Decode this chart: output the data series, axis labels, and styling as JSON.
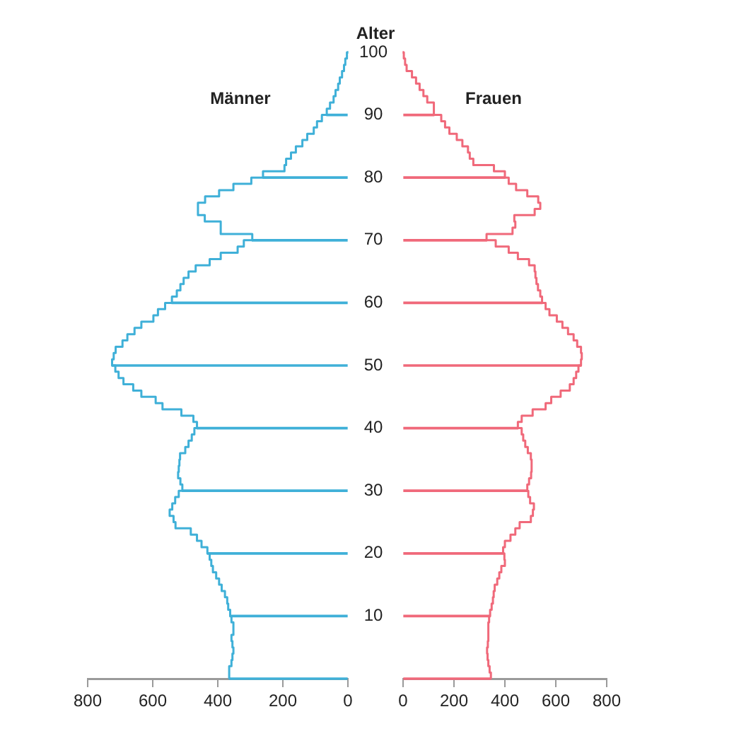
{
  "chart_data": [
    {
      "type": "step",
      "orientation": "horizontal",
      "title": "Männer",
      "ylabel": "Alter",
      "categories": [
        "100",
        null,
        null,
        null,
        null,
        null,
        null,
        null,
        null,
        null,
        "90",
        null,
        null,
        null,
        null,
        null,
        null,
        null,
        null,
        null,
        "80",
        null,
        null,
        null,
        null,
        null,
        null,
        null,
        null,
        null,
        "70",
        null,
        null,
        null,
        null,
        null,
        null,
        null,
        null,
        null,
        "60",
        null,
        null,
        null,
        null,
        null,
        null,
        null,
        null,
        null,
        "50",
        null,
        null,
        null,
        null,
        null,
        null,
        null,
        null,
        null,
        "40",
        null,
        null,
        null,
        null,
        null,
        null,
        null,
        null,
        null,
        "30",
        null,
        null,
        null,
        null,
        null,
        null,
        null,
        null,
        null,
        "20",
        null,
        null,
        null,
        null,
        null,
        null,
        null,
        null,
        null,
        "10",
        null,
        null,
        null,
        null,
        null,
        null,
        null,
        null,
        null,
        null
      ],
      "series": [
        {
          "color": "#3fb0d8",
          "values": [
            0,
            3,
            8,
            12,
            18,
            25,
            30,
            38,
            44,
            55,
            65,
            80,
            95,
            105,
            125,
            140,
            160,
            175,
            190,
            195,
            261,
            297,
            352,
            396,
            439,
            461,
            461,
            440,
            391,
            391,
            294,
            320,
            339,
            391,
            425,
            468,
            490,
            505,
            515,
            526,
            541,
            562,
            584,
            598,
            635,
            656,
            678,
            693,
            714,
            720,
            725,
            715,
            705,
            690,
            660,
            635,
            591,
            570,
            512,
            475,
            464,
            472,
            480,
            490,
            500,
            516,
            518,
            520,
            522,
            515,
            509,
            520,
            531,
            540,
            548,
            536,
            530,
            483,
            464,
            450,
            432,
            425,
            420,
            415,
            405,
            396,
            388,
            378,
            371,
            368,
            362,
            358,
            352,
            352,
            358,
            355,
            352,
            355,
            358,
            365,
            365
          ]
        },
        {
          "type": "bar",
          "color": "#3fb0d8",
          "values": [
            0,
            null,
            null,
            null,
            null,
            null,
            null,
            null,
            null,
            null,
            65,
            null,
            null,
            null,
            null,
            null,
            null,
            null,
            null,
            null,
            261,
            null,
            null,
            null,
            null,
            null,
            null,
            null,
            null,
            null,
            294,
            null,
            null,
            null,
            null,
            null,
            null,
            null,
            null,
            null,
            541,
            null,
            null,
            null,
            null,
            null,
            null,
            null,
            null,
            null,
            725,
            null,
            null,
            null,
            null,
            null,
            null,
            null,
            null,
            null,
            464,
            null,
            null,
            null,
            null,
            null,
            null,
            null,
            null,
            null,
            509,
            null,
            null,
            null,
            null,
            null,
            null,
            null,
            null,
            null,
            432,
            null,
            null,
            null,
            null,
            null,
            null,
            null,
            null,
            null,
            362,
            null,
            null,
            null,
            null,
            null,
            null,
            null,
            null,
            null,
            365
          ]
        }
      ],
      "xlim": [
        800,
        0
      ],
      "xticks": [
        800,
        600,
        400,
        200,
        0
      ]
    },
    {
      "type": "step",
      "orientation": "horizontal",
      "title": "Frauen",
      "tick_labels": "x",
      "categories": [
        "100",
        null,
        null,
        null,
        null,
        null,
        null,
        null,
        null,
        null,
        "90",
        null,
        null,
        null,
        null,
        null,
        null,
        null,
        null,
        null,
        "80",
        null,
        null,
        null,
        null,
        null,
        null,
        null,
        null,
        null,
        "70",
        null,
        null,
        null,
        null,
        null,
        null,
        null,
        null,
        null,
        "60",
        null,
        null,
        null,
        null,
        null,
        null,
        null,
        null,
        null,
        "50",
        null,
        null,
        null,
        null,
        null,
        null,
        null,
        null,
        null,
        "40",
        null,
        null,
        null,
        null,
        null,
        null,
        null,
        null,
        null,
        "30",
        null,
        null,
        null,
        null,
        null,
        null,
        null,
        null,
        null,
        "20",
        null,
        null,
        null,
        null,
        null,
        null,
        null,
        null,
        null,
        "10",
        null,
        null,
        null,
        null,
        null,
        null,
        null,
        null,
        null,
        null
      ],
      "series": [
        {
          "color": "#f0697a",
          "values": [
            0,
            3,
            8,
            14,
            35,
            51,
            65,
            80,
            95,
            121,
            121,
            150,
            165,
            182,
            211,
            233,
            255,
            262,
            276,
            357,
            400,
            415,
            444,
            488,
            531,
            539,
            517,
            437,
            441,
            430,
            328,
            364,
            415,
            451,
            495,
            517,
            520,
            524,
            530,
            539,
            546,
            560,
            575,
            604,
            626,
            648,
            670,
            684,
            699,
            702,
            699,
            689,
            680,
            670,
            655,
            619,
            582,
            560,
            509,
            466,
            451,
            466,
            472,
            480,
            490,
            502,
            505,
            505,
            503,
            495,
            488,
            492,
            499,
            514,
            510,
            502,
            458,
            441,
            422,
            400,
            393,
            398,
            400,
            386,
            378,
            370,
            360,
            356,
            353,
            348,
            342,
            338,
            335,
            335,
            335,
            333,
            330,
            332,
            335,
            340,
            345
          ]
        },
        {
          "type": "bar",
          "color": "#f0697a",
          "values": [
            0,
            null,
            null,
            null,
            null,
            null,
            null,
            null,
            null,
            null,
            121,
            null,
            null,
            null,
            null,
            null,
            null,
            null,
            null,
            null,
            400,
            null,
            null,
            null,
            null,
            null,
            null,
            null,
            null,
            null,
            328,
            null,
            null,
            null,
            null,
            null,
            null,
            null,
            null,
            null,
            546,
            null,
            null,
            null,
            null,
            null,
            null,
            null,
            null,
            null,
            699,
            null,
            null,
            null,
            null,
            null,
            null,
            null,
            null,
            null,
            451,
            null,
            null,
            null,
            null,
            null,
            null,
            null,
            null,
            null,
            488,
            null,
            null,
            null,
            null,
            null,
            null,
            null,
            null,
            null,
            393,
            null,
            null,
            null,
            null,
            null,
            null,
            null,
            null,
            null,
            342,
            null,
            null,
            null,
            null,
            null,
            null,
            null,
            null,
            null,
            345
          ]
        }
      ],
      "xlim": [
        0,
        800
      ],
      "xticks": [
        0,
        200,
        400,
        600,
        800
      ]
    }
  ]
}
